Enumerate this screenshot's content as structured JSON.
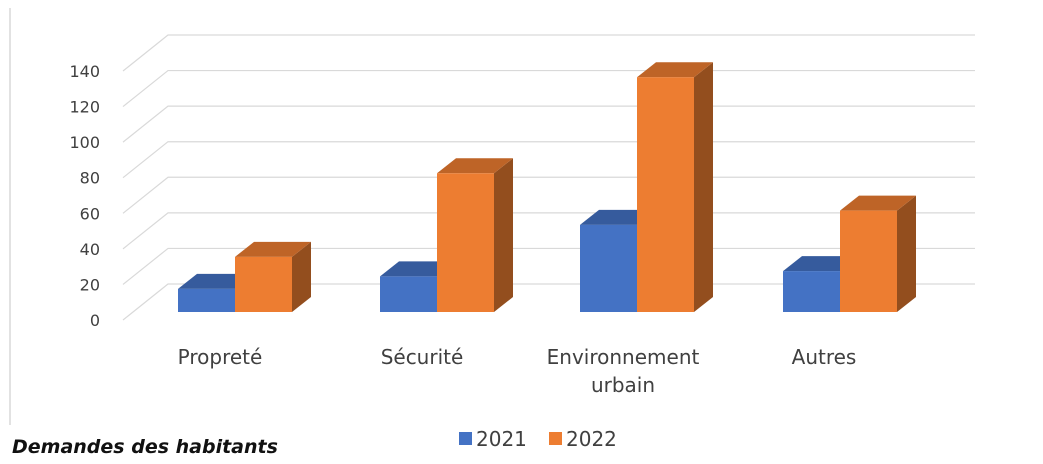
{
  "caption": "Demandes des habitants",
  "chart_data": {
    "type": "bar",
    "style": "3d-clustered-column",
    "categories": [
      "Propreté",
      "Sécurité",
      "Environnement urbain",
      "Autres"
    ],
    "category_lines": [
      [
        "Propreté"
      ],
      [
        "Sécurité"
      ],
      [
        "Environnement",
        "urbain"
      ],
      [
        "Autres"
      ]
    ],
    "series": [
      {
        "name": "2021",
        "values": [
          13,
          20,
          49,
          23
        ],
        "color": "#4472C4"
      },
      {
        "name": "2022",
        "values": [
          31,
          78,
          132,
          57
        ],
        "color": "#ED7D31"
      }
    ],
    "yticks": [
      0,
      20,
      40,
      60,
      80,
      100,
      120,
      140
    ],
    "ylim": [
      0,
      140
    ],
    "grid": true,
    "legend_position": "bottom"
  }
}
